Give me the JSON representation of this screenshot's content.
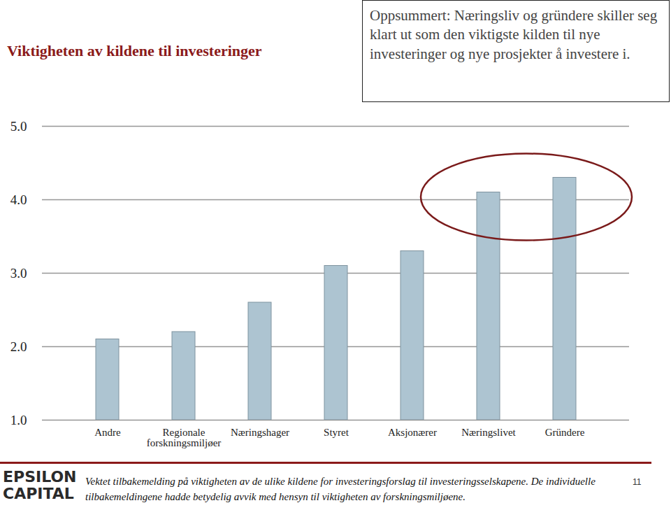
{
  "chart_data": {
    "type": "bar",
    "title": "Viktigheten av kildene til investeringer",
    "annotation": "Oppsummert: Næringsliv og gründere skiller seg klart ut som den viktigste kilden til nye investeringer og nye prosjekter å investere i.",
    "categories": [
      "Andre",
      "Regionale forskningsmiljøer",
      "Næringshager",
      "Styret",
      "Aksjonærer",
      "Næringslivet",
      "Gründere"
    ],
    "values": [
      2.1,
      2.2,
      2.6,
      3.1,
      3.3,
      4.1,
      4.3
    ],
    "color": "#adc4d1",
    "ylim": [
      1,
      5
    ],
    "yticks": [
      1,
      2,
      3,
      4,
      5
    ],
    "grid": true
  },
  "footer": {
    "logo": [
      "EPSILON",
      "CAPITAL"
    ],
    "caption": "Vektet tilbakemelding på viktigheten av de ulike kildene for investeringsforslag til investeringsselskapene. De individuelle tilbakemeldingene hadde betydelig avvik med hensyn til viktigheten av forskningsmiljøene.",
    "page": 11
  }
}
